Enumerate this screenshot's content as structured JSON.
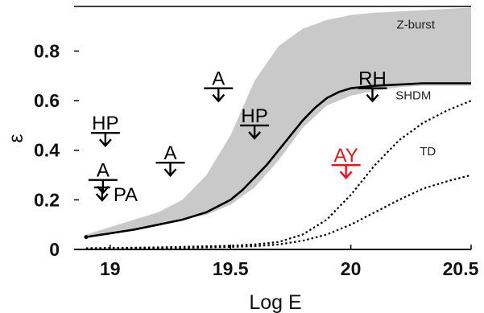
{
  "chart_data": {
    "type": "line",
    "title": "",
    "xlabel": "Log E",
    "ylabel": "ε",
    "xlim": [
      18.85,
      20.5
    ],
    "ylim": [
      0,
      0.98
    ],
    "xticks": [
      "19",
      "19.5",
      "20",
      "20.5"
    ],
    "yticks": [
      "0",
      "0.2",
      "0.4",
      "0.6",
      "0.8"
    ],
    "band": {
      "name": "Z-burst",
      "x": [
        18.9,
        19.0,
        19.1,
        19.2,
        19.3,
        19.4,
        19.5,
        19.6,
        19.7,
        19.8,
        19.9,
        20.0,
        20.1,
        20.2,
        20.3,
        20.4,
        20.5
      ],
      "lower": [
        0.05,
        0.06,
        0.08,
        0.1,
        0.12,
        0.14,
        0.18,
        0.25,
        0.36,
        0.49,
        0.58,
        0.62,
        0.64,
        0.655,
        0.66,
        0.66,
        0.66
      ],
      "upper": [
        0.06,
        0.09,
        0.12,
        0.15,
        0.2,
        0.3,
        0.46,
        0.68,
        0.82,
        0.89,
        0.925,
        0.945,
        0.955,
        0.96,
        0.965,
        0.97,
        0.975
      ]
    },
    "series": [
      {
        "name": "SHDM",
        "style": "solid",
        "x": [
          18.9,
          19.0,
          19.1,
          19.2,
          19.3,
          19.4,
          19.5,
          19.55,
          19.6,
          19.65,
          19.7,
          19.75,
          19.8,
          19.85,
          19.9,
          19.95,
          20.0,
          20.1,
          20.2,
          20.3,
          20.4,
          20.5
        ],
        "y": [
          0.05,
          0.065,
          0.08,
          0.1,
          0.12,
          0.15,
          0.2,
          0.24,
          0.29,
          0.34,
          0.4,
          0.46,
          0.52,
          0.57,
          0.61,
          0.635,
          0.65,
          0.66,
          0.665,
          0.67,
          0.67,
          0.67
        ]
      },
      {
        "name": "TD",
        "style": "dotted",
        "x": [
          18.9,
          19.2,
          19.5,
          19.6,
          19.7,
          19.8,
          19.9,
          20.0,
          20.1,
          20.2,
          20.3,
          20.4,
          20.5
        ],
        "y": [
          0.005,
          0.008,
          0.015,
          0.02,
          0.03,
          0.06,
          0.12,
          0.22,
          0.34,
          0.44,
          0.51,
          0.56,
          0.6
        ]
      },
      {
        "name": "",
        "style": "dotted",
        "x": [
          18.9,
          19.2,
          19.5,
          19.6,
          19.7,
          19.8,
          19.9,
          20.0,
          20.1,
          20.2,
          20.3,
          20.4,
          20.5
        ],
        "y": [
          0.003,
          0.005,
          0.01,
          0.013,
          0.02,
          0.035,
          0.06,
          0.1,
          0.15,
          0.2,
          0.245,
          0.275,
          0.3
        ]
      }
    ],
    "upper_limits": [
      {
        "label": "HP",
        "x": 18.98,
        "y": 0.47,
        "color": "#000000"
      },
      {
        "label": "A",
        "x": 18.97,
        "y": 0.28,
        "color": "#000000"
      },
      {
        "label": "PA",
        "x": 18.98,
        "y": 0.25,
        "color": "#000000"
      },
      {
        "label": "A",
        "x": 19.25,
        "y": 0.35,
        "color": "#000000"
      },
      {
        "label": "A",
        "x": 19.45,
        "y": 0.65,
        "color": "#000000"
      },
      {
        "label": "HP",
        "x": 19.6,
        "y": 0.5,
        "color": "#000000"
      },
      {
        "label": "RH",
        "x": 20.09,
        "y": 0.65,
        "color": "#000000"
      },
      {
        "label": "AY",
        "x": 19.98,
        "y": 0.34,
        "color": "#e8141e"
      }
    ],
    "curve_labels": [
      {
        "text": "Z-burst",
        "x": 20.27,
        "y": 0.89
      },
      {
        "text": "SHDM",
        "x": 20.26,
        "y": 0.605
      },
      {
        "text": "TD",
        "x": 20.32,
        "y": 0.38
      }
    ]
  }
}
